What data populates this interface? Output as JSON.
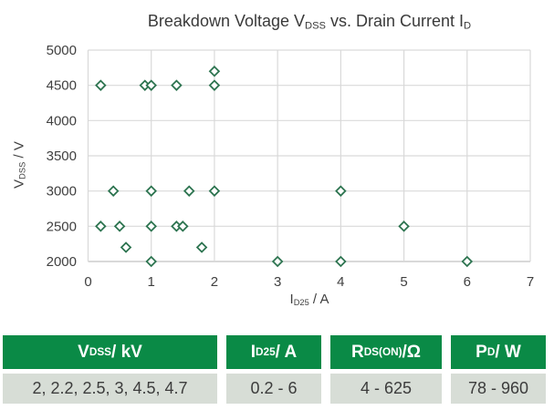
{
  "title": {
    "pre": "Breakdown Voltage V",
    "sub1": "DSS",
    "mid": " vs. Drain Current I",
    "sub2": "D"
  },
  "axes": {
    "y_label": {
      "pre": "V",
      "sub": "DSS",
      "post": " / V"
    },
    "x_label": {
      "pre": "I",
      "sub": "D25",
      "post": " / A"
    }
  },
  "chart_data": {
    "type": "scatter",
    "title": "Breakdown Voltage VDSS vs. Drain Current ID",
    "xlabel": "ID25 / A",
    "ylabel": "VDSS / V",
    "xlim": [
      0,
      7
    ],
    "ylim": [
      2000,
      5000
    ],
    "x_ticks": [
      0,
      1,
      2,
      3,
      4,
      5,
      6,
      7
    ],
    "y_ticks": [
      2000,
      2500,
      3000,
      3500,
      4000,
      4500,
      5000
    ],
    "grid": true,
    "legend": "none",
    "marker": "hollow-diamond",
    "points": [
      [
        2,
        4700
      ],
      [
        0.2,
        4500
      ],
      [
        0.9,
        4500
      ],
      [
        1,
        4500
      ],
      [
        1.4,
        4500
      ],
      [
        2,
        4500
      ],
      [
        0.4,
        3000
      ],
      [
        1,
        3000
      ],
      [
        1.6,
        3000
      ],
      [
        2,
        3000
      ],
      [
        4,
        3000
      ],
      [
        0.2,
        2500
      ],
      [
        0.5,
        2500
      ],
      [
        1,
        2500
      ],
      [
        1.4,
        2500
      ],
      [
        1.5,
        2500
      ],
      [
        5,
        2500
      ],
      [
        0.6,
        2200
      ],
      [
        1.8,
        2200
      ],
      [
        1,
        2000
      ],
      [
        3,
        2000
      ],
      [
        4,
        2000
      ],
      [
        6,
        2000
      ]
    ]
  },
  "table": {
    "headers": [
      {
        "pre": "V",
        "sub": "DSS",
        "post": " / kV"
      },
      {
        "pre": "I",
        "sub": "D25",
        "post": " / A"
      },
      {
        "pre": "R",
        "sub": "DS(ON)",
        "post": "/Ω"
      },
      {
        "pre": "P",
        "sub": "D",
        "post": " / W"
      }
    ],
    "values": [
      "2, 2.2, 2.5, 3, 4.5, 4.7",
      "0.2 - 6",
      "4 - 625",
      "78 - 960"
    ]
  },
  "colors": {
    "marker_stroke": "#2d7450",
    "marker_fill": "#ffffff",
    "grid": "#d9d9d9",
    "axis": "#c2c2c2",
    "tick_text": "#404040",
    "title_text": "#3a3a3a",
    "header_bg": "#0a8a46",
    "header_text": "#ffffff",
    "row_bg": "#d7ddd6",
    "row_text": "#3c3c3c"
  }
}
